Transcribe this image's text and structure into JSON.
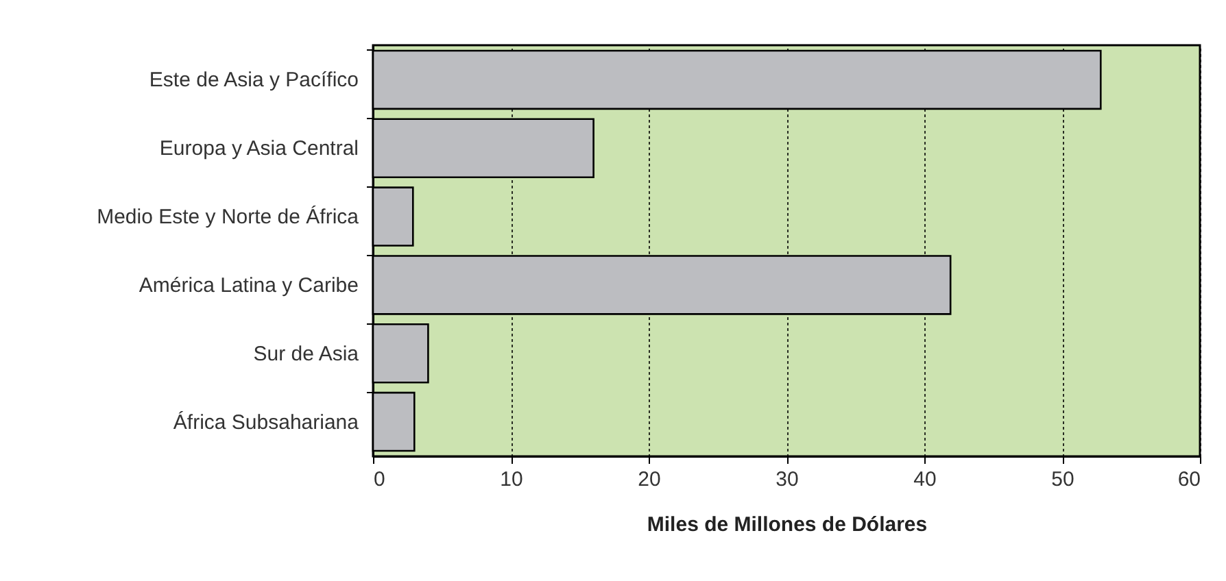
{
  "chart_data": {
    "type": "bar",
    "orientation": "horizontal",
    "xlabel": "Miles de Millones de Dólares",
    "categories": [
      "Este de Asia y Pacífico",
      "Europa y Asia Central",
      "Medio Este y Norte de África",
      "América Latina y Caribe",
      "Sur de Asia",
      "África Subsahariana"
    ],
    "values": [
      52.8,
      16,
      2.9,
      41.9,
      4,
      3
    ],
    "color": "#bcbdc1",
    "xlim": [
      0,
      60
    ],
    "xticks": [
      0,
      10,
      20,
      30,
      40,
      50,
      60
    ],
    "grid": "x"
  }
}
